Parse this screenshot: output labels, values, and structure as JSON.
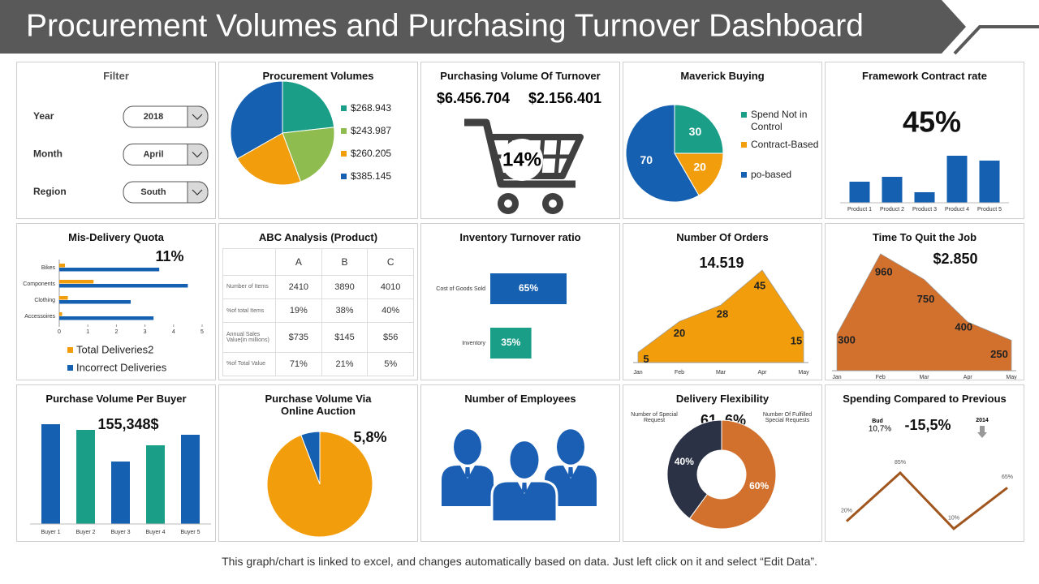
{
  "title": "Procurement Volumes and Purchasing Turnover Dashboard",
  "footer": "This graph/chart is linked to excel, and changes automatically  based on data. Just left click on it and select “Edit Data”.",
  "panels": [
    {
      "type": "filter",
      "title": "Filter",
      "fields": [
        {
          "label": "Year",
          "value": "2018"
        },
        {
          "label": "Month",
          "value": "April"
        },
        {
          "label": "Region",
          "value": "South"
        }
      ]
    },
    {
      "type": "pie",
      "title": "Procurement Volumes",
      "values": [
        268.943,
        243.987,
        260.205,
        385.145
      ],
      "value_labels": [
        "$268.943",
        "$243.987",
        "$260.205",
        "$385.145"
      ],
      "colors": [
        "#1a9e88",
        "#8fbc4f",
        "#f29d0c",
        "#1560b0"
      ]
    },
    {
      "type": "cart",
      "title": "Purchasing Volume Of Turnover",
      "figures": [
        "$6.456.704",
        "$2.156.401"
      ],
      "center_label": "14%"
    },
    {
      "type": "pie",
      "title": "Maverick Buying",
      "categories": [
        "Spend Not in Control",
        "Contract-Based",
        "po-based"
      ],
      "values": [
        30,
        20,
        70
      ],
      "colors": [
        "#1a9e88",
        "#f29d0c",
        "#1560b0"
      ],
      "show_values": true
    },
    {
      "type": "bar",
      "title": "Framework Contract rate",
      "headline": "45%",
      "categories": [
        "Product 1",
        "Product 2",
        "Product 3",
        "Product 4",
        "Product 5"
      ],
      "values": [
        26,
        32,
        13,
        58,
        52
      ],
      "color": "#1560b0"
    },
    {
      "type": "hbar",
      "title": "Mis-Delivery Quota",
      "headline": "11%",
      "categories": [
        "Bikes",
        "Components",
        "Clothing",
        "Accessoires"
      ],
      "series": [
        {
          "name": "Total Deliveries2",
          "color": "#f29d0c",
          "values": [
            0.2,
            1.2,
            0.3,
            0.1
          ]
        },
        {
          "name": "Incorrect Deliveries",
          "color": "#1560b0",
          "values": [
            3.5,
            4.5,
            2.5,
            3.3
          ]
        }
      ],
      "xlim": [
        0,
        5
      ],
      "xticks": [
        0,
        1,
        2,
        3,
        4,
        5
      ]
    },
    {
      "type": "table",
      "title": "ABC Analysis (Product)",
      "columns": [
        "A",
        "B",
        "C"
      ],
      "rows": [
        {
          "label": "Number of Items",
          "cells": [
            "2410",
            "3890",
            "4010"
          ]
        },
        {
          "label": "%of total Items",
          "cells": [
            "19%",
            "38%",
            "40%"
          ]
        },
        {
          "label": "Annual Sales Value(in millions)",
          "cells": [
            "$735",
            "$145",
            "$56"
          ]
        },
        {
          "label": "%of Total Value",
          "cells": [
            "71%",
            "21%",
            "5%"
          ]
        }
      ]
    },
    {
      "type": "ratiobar",
      "title": "Inventory Turnover ratio",
      "categories": [
        "Cost of Goods Sold",
        "Inventory"
      ],
      "values": [
        65,
        35
      ],
      "value_labels": [
        "65%",
        "35%"
      ],
      "colors": [
        "#1560b0",
        "#1a9e88"
      ]
    },
    {
      "type": "area",
      "title": "Number Of Orders",
      "headline": "14.519",
      "categories": [
        "Jan",
        "Feb",
        "Mar",
        "Apr",
        "May"
      ],
      "values": [
        5,
        20,
        28,
        45,
        15
      ],
      "color": "#f29d0c"
    },
    {
      "type": "area",
      "title": "Time To Quit the Job",
      "headline": "$2.850",
      "categories": [
        "Jan",
        "Feb",
        "Mar",
        "Apr",
        "May"
      ],
      "values": [
        300,
        960,
        750,
        400,
        250
      ],
      "color": "#d2702e"
    },
    {
      "type": "bar",
      "title": "Purchase Volume Per Buyer",
      "headline": "155,348$",
      "categories": [
        "Buyer 1",
        "Buyer 2",
        "Buyer 3",
        "Buyer 4",
        "Buyer 5"
      ],
      "values": [
        123,
        116,
        77,
        97,
        110
      ],
      "colors": [
        "#1560b0",
        "#1a9e88",
        "#1560b0",
        "#1a9e88",
        "#1560b0"
      ]
    },
    {
      "type": "pie",
      "title": "Purchase Volume Via Online Auction",
      "headline": "5,8%",
      "values": [
        94.2,
        5.8
      ],
      "colors": [
        "#f29d0c",
        "#1560b0"
      ]
    },
    {
      "type": "icon",
      "title": "Number of Employees"
    },
    {
      "type": "donut",
      "title": "Delivery Flexibility",
      "headline": "61, 6%",
      "notes": [
        "Number of Special Request",
        "Number Of Fulfilled Special Requests"
      ],
      "values": [
        40,
        60
      ],
      "value_labels": [
        "40%",
        "60%"
      ],
      "colors": [
        "#2b3245",
        "#d2702e"
      ],
      "show_values": true
    },
    {
      "type": "line",
      "title": "Spending Compared to Previous",
      "headline": "-15,5%",
      "notes": [
        "Bud",
        "10,7%",
        "2014"
      ],
      "values": [
        20,
        85,
        10,
        65
      ],
      "value_labels": [
        "20%",
        "85%",
        "10%",
        "65%"
      ],
      "color": "#a0561e"
    }
  ]
}
